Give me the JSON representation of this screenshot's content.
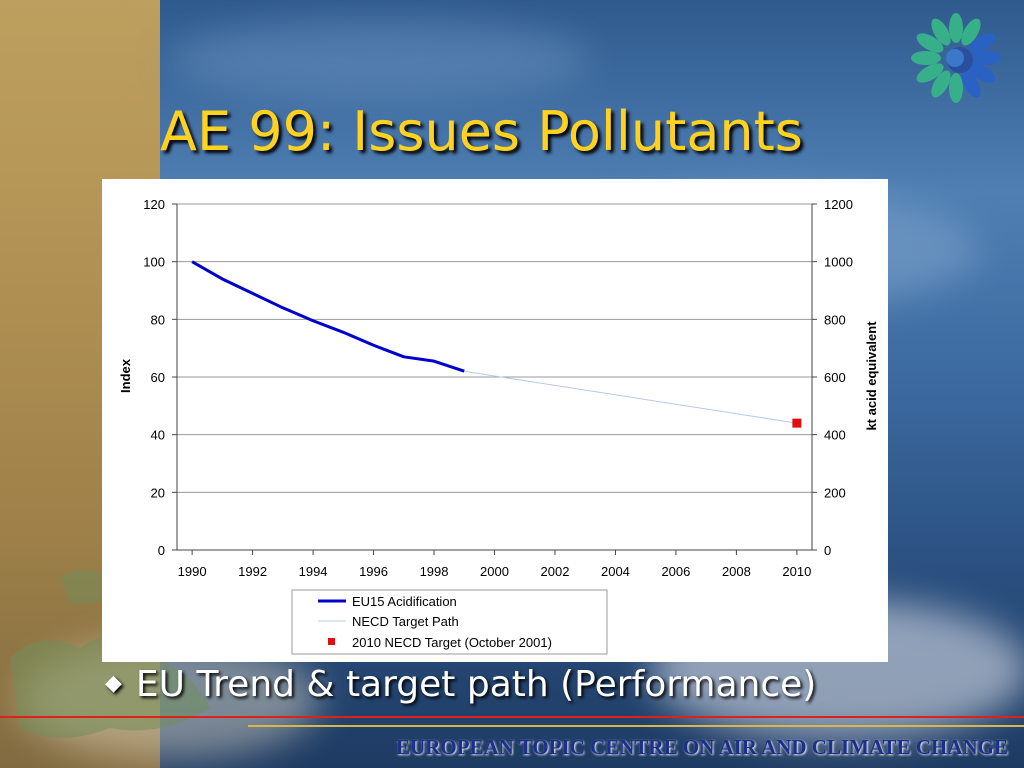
{
  "slide": {
    "title": "AE 99: Issues Pollutants",
    "bullet": "EU Trend & target path (Performance)",
    "footer": "EUROPEAN TOPIC CENTRE ON AIR AND CLIMATE CHANGE"
  },
  "colors": {
    "title": "#ffd21f",
    "eu15_series": "#0000cc",
    "necd_series": "#b8c8e8",
    "target_marker": "#e01010",
    "footer": "#1c2f8a",
    "rule_red": "#e0201a",
    "rule_gold": "#d8b64a"
  },
  "chart_data": {
    "type": "line",
    "title": "",
    "ylabel": "Index",
    "y2label": "kt acid equivalent",
    "xlim": [
      1989.5,
      2010.5
    ],
    "ylim": [
      0,
      120
    ],
    "y2lim": [
      0,
      1200
    ],
    "x_ticks": [
      "1990",
      "1992",
      "1994",
      "1996",
      "1998",
      "2000",
      "2002",
      "2004",
      "2006",
      "2008",
      "2010"
    ],
    "y_ticks": [
      "0",
      "20",
      "40",
      "60",
      "80",
      "100",
      "120"
    ],
    "y2_ticks": [
      "0",
      "200",
      "400",
      "600",
      "800",
      "1000",
      "1200"
    ],
    "grid": true,
    "legend_position": "bottom",
    "series": [
      {
        "name": "EU15 Acidification",
        "kind": "line",
        "x": [
          1990,
          1991,
          1992,
          1993,
          1994,
          1995,
          1996,
          1997,
          1998,
          1999
        ],
        "y": [
          100,
          94,
          89,
          84,
          79.5,
          75.5,
          71,
          67,
          65.5,
          62
        ]
      },
      {
        "name": "NECD Target Path",
        "kind": "line",
        "x": [
          1999,
          2010
        ],
        "y": [
          62,
          44
        ]
      },
      {
        "name": "2010 NECD Target (October 2001)",
        "kind": "marker",
        "x": [
          2010
        ],
        "y": [
          44
        ]
      }
    ]
  }
}
